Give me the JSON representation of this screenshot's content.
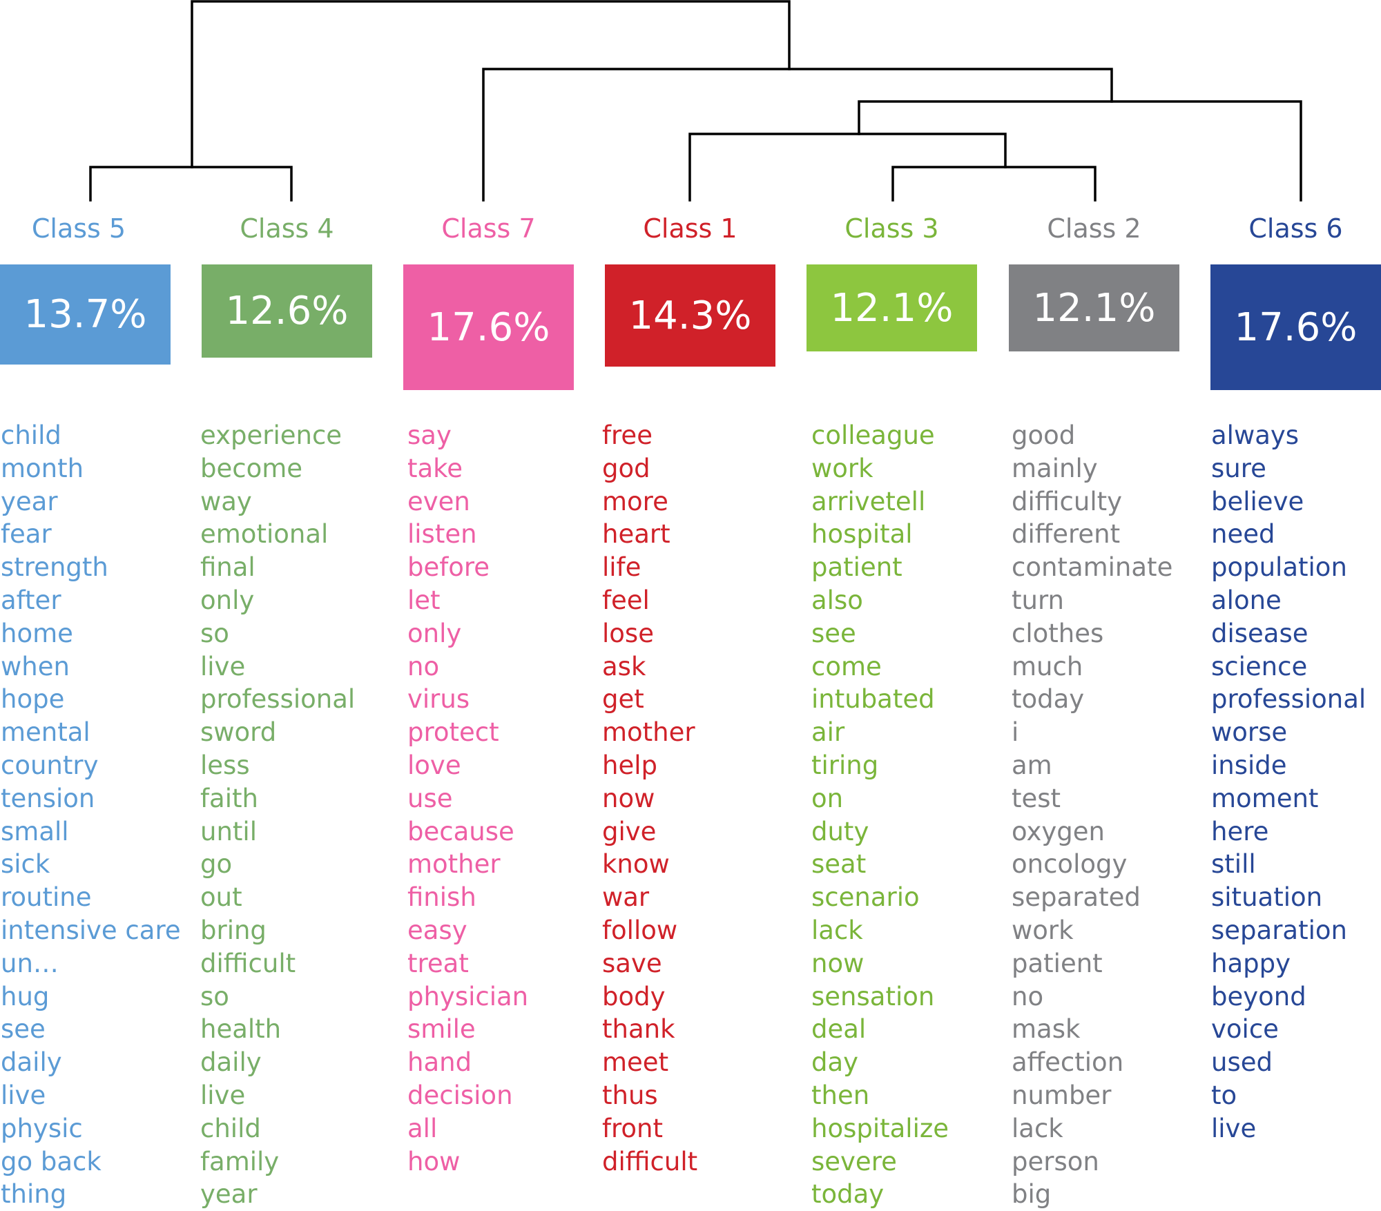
{
  "colors": {
    "class5": "#5b9bd5",
    "class4": "#78ae68",
    "class7": "#ee5fa5",
    "class1": "#d02129",
    "class3": "#8dc63f",
    "class2": "#808184",
    "class6": "#274796",
    "lines": "#000000"
  },
  "classes": [
    {
      "id": "class5",
      "label": "Class 5",
      "percent": "13.7%",
      "color": "#5b9bd5",
      "text_color": "#5b9bd5",
      "words": [
        "child",
        "month",
        "year",
        "fear",
        "strength",
        "after",
        "home",
        "when",
        "hope",
        "mental",
        "country",
        "tension",
        "small",
        "sick",
        "routine",
        "intensive care",
        "un…",
        "hug",
        "see",
        "daily",
        "live",
        "physic",
        "go back",
        "thing"
      ]
    },
    {
      "id": "class4",
      "label": "Class 4",
      "percent": "12.6%",
      "color": "#78ae68",
      "text_color": "#78ae68",
      "words": [
        "experience",
        "become",
        "way",
        "emotional",
        "final",
        "only",
        "so",
        "live",
        "professional",
        "sword",
        "less",
        "faith",
        "until",
        "go",
        "out",
        "bring",
        "difficult",
        "so",
        "health",
        "daily",
        "live",
        "child",
        "family",
        "year"
      ]
    },
    {
      "id": "class7",
      "label": "Class 7",
      "percent": "17.6%",
      "color": "#ee5fa5",
      "text_color": "#ee5fa5",
      "words": [
        "say",
        "take",
        "even",
        "listen",
        "before",
        "let",
        "only",
        "no",
        "virus",
        "protect",
        "love",
        "use",
        "because",
        "mother",
        "finish",
        "easy",
        "treat",
        "physician",
        "smile",
        "hand",
        "decision",
        "all",
        "how"
      ]
    },
    {
      "id": "class1",
      "label": "Class 1",
      "percent": "14.3%",
      "color": "#d02129",
      "text_color": "#d02129",
      "words": [
        "free",
        "god",
        "more",
        "heart",
        "life",
        "feel",
        "lose",
        "ask",
        "get",
        "mother",
        "help",
        "now",
        "give",
        "know",
        "war",
        "follow",
        "save",
        "body",
        "thank",
        "meet",
        "thus",
        "front",
        "difficult"
      ]
    },
    {
      "id": "class3",
      "label": "Class 3",
      "percent": "12.1%",
      "color": "#8dc63f",
      "text_color": "#7ab53a",
      "words": [
        "colleague",
        "work",
        "arrivetell",
        "hospital",
        "patient",
        "also",
        "see",
        "come",
        "intubated",
        "air",
        "tiring",
        "on",
        "duty",
        "seat",
        "scenario",
        "lack",
        "now",
        "sensation",
        "deal",
        "day",
        "then",
        "hospitalize",
        "severe",
        "today"
      ]
    },
    {
      "id": "class2",
      "label": "Class 2",
      "percent": "12.1%",
      "color": "#808184",
      "text_color": "#808184",
      "words": [
        "good",
        "mainly",
        "difficulty",
        "different",
        "contaminate",
        "turn",
        "clothes",
        "much",
        "today",
        "i",
        "am",
        "test",
        "oxygen",
        "oncology",
        "separated",
        "work",
        "patient",
        "no",
        "mask",
        "affection",
        "number",
        "lack",
        "person",
        "big"
      ]
    },
    {
      "id": "class6",
      "label": "Class 6",
      "percent": "17.6%",
      "color": "#274796",
      "text_color": "#274796",
      "words": [
        "always",
        "sure",
        "believe",
        "need",
        "population",
        "alone",
        "disease",
        "science",
        "professional",
        "worse",
        "inside",
        "moment",
        "here",
        "still",
        "situation",
        "separation",
        "happy",
        "beyond",
        "voice",
        "used",
        "to",
        "live"
      ]
    }
  ]
}
